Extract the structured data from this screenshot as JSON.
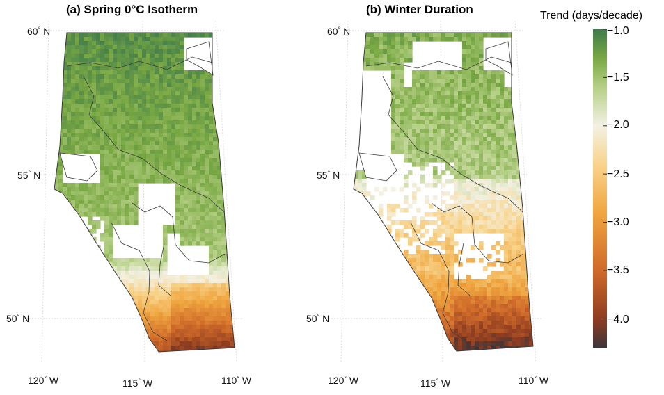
{
  "panels": [
    {
      "id": "a",
      "title": "(a) Spring 0°C Isotherm",
      "lat_labels": [
        {
          "deg": "60",
          "hemi": "N"
        },
        {
          "deg": "55",
          "hemi": "N"
        },
        {
          "deg": "50",
          "hemi": "N"
        }
      ],
      "lon_labels": [
        {
          "deg": "120",
          "hemi": "W"
        },
        {
          "deg": "115",
          "hemi": "W"
        },
        {
          "deg": "110",
          "hemi": "W"
        }
      ]
    },
    {
      "id": "b",
      "title": "(b) Winter Duration",
      "lat_labels": [
        {
          "deg": "60",
          "hemi": "N"
        },
        {
          "deg": "55",
          "hemi": "N"
        },
        {
          "deg": "50",
          "hemi": "N"
        }
      ],
      "lon_labels": [
        {
          "deg": "120",
          "hemi": "W"
        },
        {
          "deg": "115",
          "hemi": "W"
        },
        {
          "deg": "110",
          "hemi": "W"
        }
      ]
    }
  ],
  "colorbar": {
    "title": "Trend (days/decade)",
    "range": [
      -4.3,
      -1.0
    ],
    "ticks": [
      "−1.0",
      "−1.5",
      "−2.0",
      "−2.5",
      "−3.0",
      "−3.5",
      "−4.0"
    ],
    "tick_values": [
      -1.0,
      -1.5,
      -2.0,
      -2.5,
      -3.0,
      -3.5,
      -4.0
    ],
    "stops": [
      {
        "value": -1.0,
        "color": "#3f7a4c"
      },
      {
        "value": -1.3,
        "color": "#79a843"
      },
      {
        "value": -1.6,
        "color": "#b5cf85"
      },
      {
        "value": -2.0,
        "color": "#f3f1e4"
      },
      {
        "value": -2.4,
        "color": "#f8d48c"
      },
      {
        "value": -2.9,
        "color": "#f0a640"
      },
      {
        "value": -3.5,
        "color": "#cf6a2a"
      },
      {
        "value": -4.0,
        "color": "#8e3d21"
      },
      {
        "value": -4.3,
        "color": "#3c3639"
      }
    ]
  },
  "colors": {
    "land_missing": "#ffffff",
    "outline": "#3a3a3a",
    "graticule": "#cfcfcf"
  }
}
